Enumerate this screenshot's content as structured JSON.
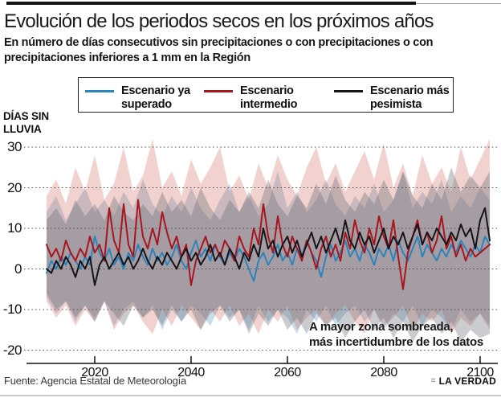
{
  "header": {
    "title": "Evolución de los periodos secos en los próximos años",
    "subtitle_lines": [
      "En número de días consecutivos sin precipitaciones o con precipitaciones o con",
      "precipitaciones inferiores a 1 mm en la Región"
    ]
  },
  "legend": {
    "items": [
      {
        "id": "ya-superado",
        "label": "Escenario ya superado",
        "color": "#2b84ba"
      },
      {
        "id": "intermedio",
        "label": "Escenario intermedio",
        "color": "#a6161f"
      },
      {
        "id": "mas-pesimista",
        "label": "Escenario más pesimista",
        "color": "#16161a"
      }
    ]
  },
  "chart": {
    "y_axis_title": "DÍAS SIN LLUVIA",
    "annotation_lines": [
      "A mayor zona sombreada,",
      "más incertidumbre de los datos"
    ]
  },
  "footer": {
    "source": "Fuente: Agencia Estatal de Meteorología",
    "brand": "LA VERDAD"
  },
  "chart_data": {
    "type": "line",
    "title": "Evolución de los periodos secos en los próximos años",
    "xlabel": "",
    "ylabel": "DÍAS SIN LLUVIA",
    "x_start": 2010,
    "x_step": 1,
    "xlim": [
      2010,
      2103
    ],
    "ylim": [
      -20,
      30
    ],
    "x_ticks": [
      2020,
      2040,
      2060,
      2080,
      2100
    ],
    "y_ticks": [
      30,
      20,
      10,
      0,
      -10,
      -20
    ],
    "grid": "dotted-horizontal",
    "legend_position": "top",
    "series": [
      {
        "id": "ya-superado",
        "name": "Escenario ya superado",
        "color": "#2b84ba",
        "values": [
          -1,
          2,
          0,
          3,
          1,
          4,
          2,
          0,
          3,
          1,
          8,
          4,
          2,
          5,
          1,
          3,
          0,
          4,
          2,
          6,
          3,
          1,
          5,
          2,
          4,
          1,
          3,
          6,
          2,
          0,
          4,
          7,
          3,
          5,
          2,
          6,
          3,
          1,
          4,
          2,
          5,
          3,
          0,
          -3,
          2,
          4,
          1,
          3,
          6,
          2,
          4,
          1,
          5,
          3,
          7,
          4,
          2,
          -2,
          3,
          6,
          2,
          4,
          7,
          3,
          5,
          2,
          6,
          4,
          1,
          5,
          3,
          6,
          2,
          7,
          4,
          2,
          5,
          8,
          3,
          6,
          4,
          2,
          5,
          3,
          6,
          4,
          7,
          5,
          3,
          6,
          4,
          8,
          6
        ],
        "band": {
          "x_step": 2,
          "fill": "rgba(80,140,185,0.30)",
          "upper": [
            14,
            18,
            12,
            16,
            20,
            14,
            17,
            13,
            19,
            15,
            22,
            16,
            13,
            18,
            14,
            20,
            15,
            12,
            17,
            21,
            14,
            18,
            13,
            16,
            24,
            15,
            19,
            14,
            17,
            22,
            16,
            13,
            18,
            15,
            21,
            14,
            17,
            24,
            15,
            19,
            16,
            22,
            14,
            18,
            15,
            20,
            17
          ],
          "lower": [
            -7,
            -11,
            -8,
            -13,
            -9,
            -12,
            -8,
            -14,
            -10,
            -8,
            -12,
            -9,
            -15,
            -10,
            -13,
            -9,
            -11,
            -14,
            -9,
            -12,
            -10,
            -15,
            -9,
            -13,
            -10,
            -12,
            -16,
            -10,
            -13,
            -9,
            -14,
            -11,
            -9,
            -13,
            -10,
            -15,
            -11,
            -13,
            -9,
            -14,
            -10,
            -12,
            -15,
            -10,
            -13,
            -11,
            -14
          ]
        }
      },
      {
        "id": "intermedio",
        "name": "Escenario intermedio",
        "color": "#a6161f",
        "values": [
          6,
          3,
          5,
          2,
          7,
          4,
          2,
          5,
          3,
          8,
          4,
          6,
          2,
          15,
          7,
          4,
          16,
          6,
          3,
          17,
          8,
          5,
          10,
          6,
          14,
          9,
          5,
          8,
          3,
          6,
          -4,
          2,
          5,
          8,
          4,
          6,
          3,
          7,
          5,
          2,
          8,
          5,
          3,
          10,
          6,
          16,
          8,
          4,
          13,
          6,
          3,
          8,
          5,
          2,
          7,
          4,
          0,
          5,
          8,
          3,
          6,
          2,
          9,
          5,
          12,
          7,
          4,
          10,
          6,
          13,
          8,
          5,
          12,
          3,
          -5,
          4,
          8,
          12,
          6,
          9,
          4,
          7,
          13,
          5,
          8,
          3,
          6,
          2,
          5,
          3,
          4,
          5,
          6
        ],
        "band": {
          "x_step": 2,
          "fill": "rgba(205,95,80,0.28)",
          "upper": [
            18,
            22,
            16,
            25,
            19,
            28,
            17,
            21,
            30,
            19,
            23,
            32,
            20,
            24,
            18,
            27,
            21,
            25,
            30,
            19,
            23,
            17,
            26,
            20,
            28,
            22,
            18,
            25,
            30,
            21,
            26,
            19,
            24,
            29,
            22,
            31,
            20,
            26,
            18,
            28,
            21,
            25,
            19,
            30,
            22,
            27,
            32
          ],
          "lower": [
            -8,
            -12,
            -9,
            -14,
            -10,
            -13,
            -8,
            -15,
            -11,
            -9,
            -13,
            -16,
            -10,
            -14,
            -9,
            -12,
            -15,
            -10,
            -13,
            -9,
            -14,
            -11,
            -16,
            -10,
            -13,
            -9,
            -15,
            -12,
            -10,
            -14,
            -11,
            -9,
            -13,
            -16,
            -10,
            -14,
            -12,
            -9,
            -15,
            -11,
            -13,
            -10,
            -16,
            -12,
            -14,
            -11,
            -15
          ]
        }
      },
      {
        "id": "mas-pesimista",
        "name": "Escenario más pesimista",
        "color": "#16161a",
        "values": [
          0,
          -1,
          2,
          0,
          3,
          1,
          -2,
          2,
          0,
          3,
          -4,
          1,
          3,
          0,
          2,
          4,
          1,
          3,
          0,
          2,
          5,
          2,
          0,
          3,
          1,
          4,
          2,
          0,
          3,
          5,
          2,
          4,
          1,
          3,
          6,
          2,
          4,
          1,
          5,
          3,
          0,
          4,
          2,
          6,
          3,
          10,
          5,
          7,
          3,
          6,
          8,
          4,
          7,
          3,
          6,
          9,
          5,
          8,
          4,
          7,
          10,
          6,
          12,
          7,
          5,
          9,
          6,
          8,
          4,
          7,
          10,
          5,
          8,
          6,
          9,
          5,
          8,
          11,
          6,
          9,
          7,
          10,
          8,
          6,
          9,
          7,
          11,
          8,
          10,
          5,
          12,
          15,
          7
        ],
        "band": {
          "x_step": 2,
          "fill": "rgba(95,100,110,0.33)",
          "upper": [
            12,
            15,
            11,
            17,
            13,
            16,
            12,
            18,
            14,
            12,
            16,
            13,
            19,
            14,
            17,
            13,
            20,
            15,
            12,
            17,
            14,
            19,
            15,
            22,
            16,
            13,
            18,
            15,
            21,
            16,
            23,
            17,
            14,
            19,
            16,
            22,
            17,
            24,
            18,
            15,
            21,
            17,
            25,
            19,
            23,
            20,
            24
          ],
          "lower": [
            -6,
            -10,
            -8,
            -12,
            -9,
            -13,
            -8,
            -11,
            -14,
            -9,
            -12,
            -10,
            -14,
            -9,
            -13,
            -10,
            -15,
            -11,
            -9,
            -13,
            -10,
            -16,
            -11,
            -14,
            -10,
            -15,
            -12,
            -16,
            -11,
            -14,
            -12,
            -17,
            -13,
            -10,
            -15,
            -12,
            -17,
            -13,
            -18,
            -14,
            -12,
            -16,
            -13,
            -18,
            -15,
            -17,
            -16
          ]
        }
      }
    ]
  }
}
